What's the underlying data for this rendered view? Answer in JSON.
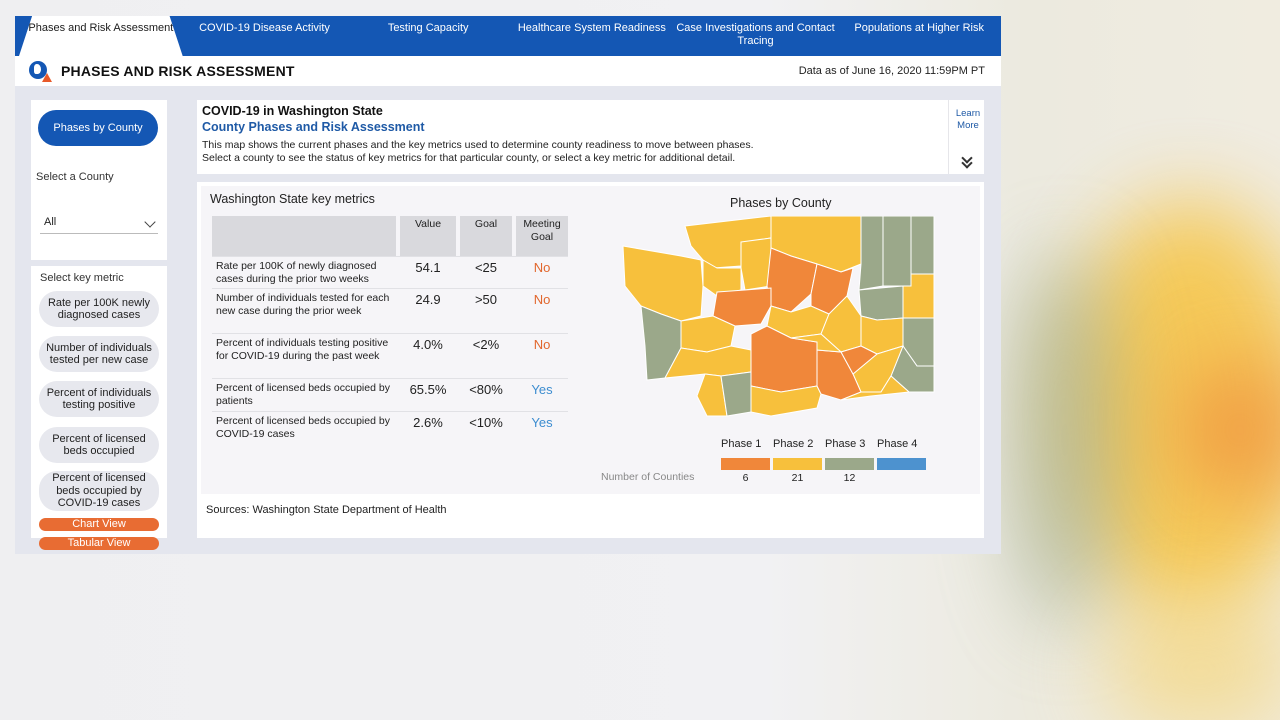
{
  "nav": {
    "tabs": [
      {
        "label": "Phases and Risk Assessment"
      },
      {
        "label": "COVID-19 Disease Activity"
      },
      {
        "label": "Testing Capacity"
      },
      {
        "label": "Healthcare System Readiness"
      },
      {
        "label": "Case Investigations and Contact Tracing"
      },
      {
        "label": "Populations at Higher Risk"
      }
    ],
    "active_index": 0
  },
  "header": {
    "title": "PHASES AND RISK ASSESSMENT",
    "data_as_of": "Data as of June 16, 2020 11:59PM PT",
    "logo_icon": "wa-doh-globe-icon"
  },
  "sidebar": {
    "phases_button": "Phases by County",
    "select_county_label": "Select a County",
    "county_value": "All",
    "key_metric_label": "Select key metric",
    "metrics": [
      "Rate per 100K newly diagnosed cases",
      "Number of individuals tested per new case",
      "Percent of individuals testing positive",
      "Percent of licensed beds occupied",
      "Percent of licensed beds occupied by COVID-19 cases"
    ],
    "chart_view": "Chart View",
    "tabular_view": "Tabular View"
  },
  "info": {
    "title": "COVID-19 in Washington State",
    "subtitle": "County Phases and Risk Assessment",
    "line1": "This map shows the current phases and the key metrics used to determine county readiness to move between phases.",
    "line2": "Select a county to see the status of key metrics for that particular county, or select a key metric for additional detail.",
    "learn_more": "Learn More"
  },
  "key_metrics": {
    "title": "Washington State key metrics",
    "headers": {
      "value": "Value",
      "goal": "Goal",
      "meeting": "Meeting Goal"
    },
    "rows": [
      {
        "metric": "Rate per 100K of newly diagnosed cases during the prior two weeks",
        "value": "54.1",
        "goal": "<25",
        "meeting": "No"
      },
      {
        "metric": "Number of individuals tested for each new case during the prior week",
        "value": "24.9",
        "goal": ">50",
        "meeting": "No"
      },
      {
        "metric": "Percent of individuals testing positive for COVID-19 during the past week",
        "value": "4.0%",
        "goal": "<2%",
        "meeting": "No"
      },
      {
        "metric": "Percent of licensed beds occupied by patients",
        "value": "65.5%",
        "goal": "<80%",
        "meeting": "Yes"
      },
      {
        "metric": "Percent of licensed beds occupied by COVID-19 cases",
        "value": "2.6%",
        "goal": "<10%",
        "meeting": "Yes"
      }
    ]
  },
  "map": {
    "title": "Phases by County",
    "number_of_counties_label": "Number of Counties",
    "phases": [
      {
        "label": "Phase 1",
        "count": "6",
        "color": "#f0873a"
      },
      {
        "label": "Phase 2",
        "count": "21",
        "color": "#f7c03c"
      },
      {
        "label": "Phase 3",
        "count": "12",
        "color": "#9ba88a"
      },
      {
        "label": "Phase 4",
        "count": "",
        "color": "#4d92cf"
      }
    ]
  },
  "sources": "Sources: Washington State Department of Health"
}
